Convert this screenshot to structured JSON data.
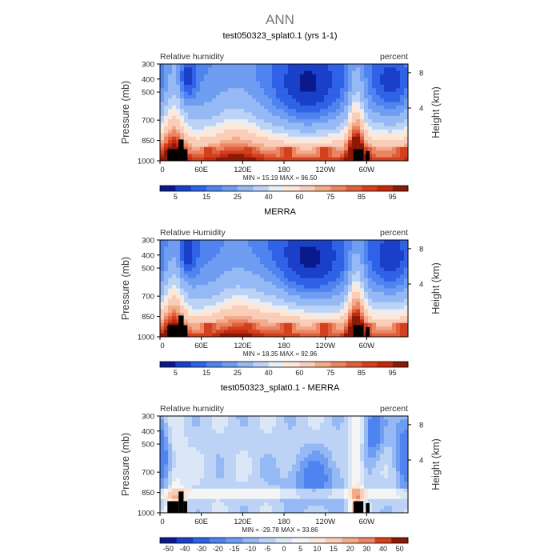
{
  "figure_title": "ANN",
  "colormaps": {
    "rh": [
      "#0a1a8c",
      "#1a3fc8",
      "#2f62e6",
      "#4f83ef",
      "#6f9df2",
      "#95b9f4",
      "#bcd3f6",
      "#e6eef8",
      "#fde7d9",
      "#f9cdb7",
      "#f4ab8c",
      "#ec8563",
      "#e0603e",
      "#d2401d",
      "#c12a10",
      "#8a1a06"
    ],
    "diff": [
      "#0a1a8c",
      "#1a3fc8",
      "#2f62e6",
      "#4f83ef",
      "#6f9df2",
      "#95b9f4",
      "#bcd3f6",
      "#dbe6f6",
      "#f5f5f5",
      "#fde7d9",
      "#f9cdb7",
      "#f4ab8c",
      "#ec8563",
      "#d2401d",
      "#8a1a06"
    ]
  },
  "chart_data": [
    {
      "type": "heatmap",
      "title": "test050323_splat0.1 (yrs 1-1)",
      "left_label": "Relative humidity",
      "right_label": "percent",
      "ylabel": "Pressure (mb)",
      "ylabel_right": "Height (km)",
      "x_ticks": [
        "0",
        "60E",
        "120E",
        "180",
        "120W",
        "60W"
      ],
      "y_ticks": [
        "300",
        "400",
        "500",
        "700",
        "850",
        "1000"
      ],
      "y_right_ticks": [
        "8",
        "4"
      ],
      "stats": "MIN =   15.19   MAX =   96.50",
      "colorbar_labels": [
        "5",
        "15",
        "25",
        "40",
        "60",
        "75",
        "85",
        "95"
      ],
      "field": "model",
      "min": 15.19,
      "max": 96.5
    },
    {
      "type": "heatmap",
      "title": "MERRA",
      "left_label": "Relative Humidity",
      "right_label": "percent",
      "ylabel": "Pressure (mb)",
      "ylabel_right": "Height (km)",
      "x_ticks": [
        "0",
        "60E",
        "120E",
        "180",
        "120W",
        "60W"
      ],
      "y_ticks": [
        "300",
        "400",
        "500",
        "700",
        "850",
        "1000"
      ],
      "y_right_ticks": [
        "8",
        "4"
      ],
      "stats": "MIN =   18.35   MAX =   92.96",
      "colorbar_labels": [
        "5",
        "15",
        "25",
        "40",
        "60",
        "75",
        "85",
        "95"
      ],
      "field": "obs",
      "min": 18.35,
      "max": 92.96
    },
    {
      "type": "heatmap",
      "title": "test050323_splat0.1 - MERRA",
      "left_label": "Relative humidity",
      "right_label": "percent",
      "ylabel": "Pressure (mb)",
      "ylabel_right": "Height (km)",
      "x_ticks": [
        "0",
        "60E",
        "120E",
        "180",
        "120W",
        "60W"
      ],
      "y_ticks": [
        "300",
        "400",
        "500",
        "700",
        "850",
        "1000"
      ],
      "y_right_ticks": [
        "8",
        "4"
      ],
      "stats": "MIN =  -29.78   MAX =   33.86",
      "colorbar_labels": [
        "-50",
        "-40",
        "-30",
        "-20",
        "-15",
        "-10",
        "-5",
        "0",
        "5",
        "10",
        "15",
        "20",
        "30",
        "40",
        "50"
      ],
      "field": "diff",
      "min": -29.78,
      "max": 33.86
    }
  ]
}
